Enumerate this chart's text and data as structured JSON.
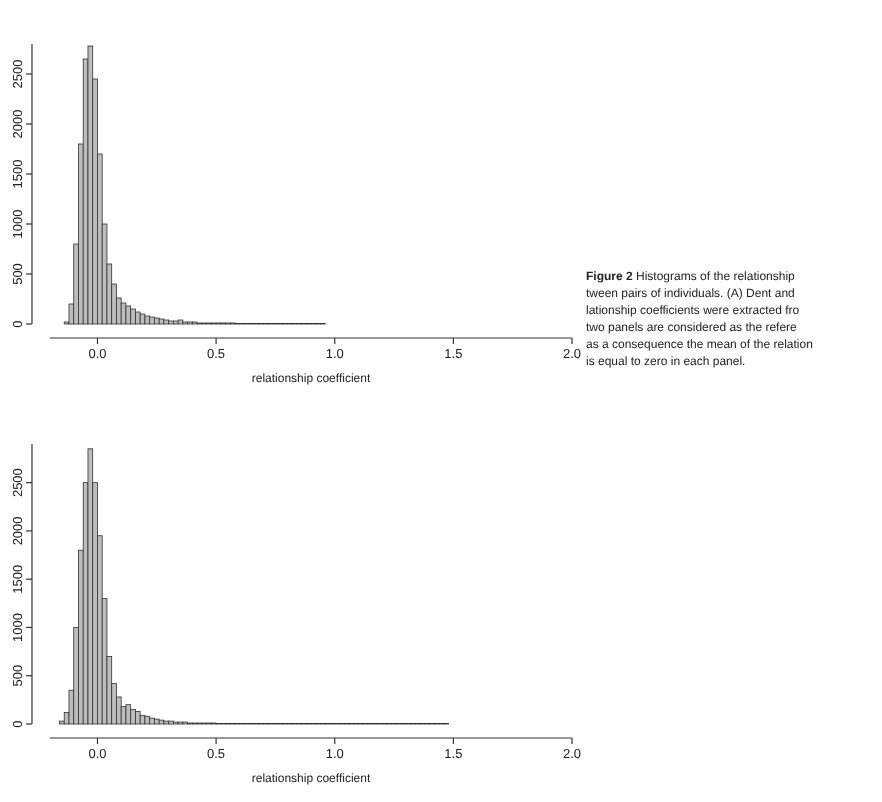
{
  "chart_data": [
    {
      "type": "histogram",
      "xlabel": "relationship coefficient",
      "xlim": [
        -0.2,
        2.0
      ],
      "xticks": [
        {
          "value": 0,
          "label": "0.0"
        },
        {
          "value": 0.5,
          "label": "0.5"
        },
        {
          "value": 1,
          "label": "1.0"
        },
        {
          "value": 1.5,
          "label": "1.5"
        },
        {
          "value": 2,
          "label": "2.0"
        }
      ],
      "ylim": [
        0,
        2800
      ],
      "yticks": [
        0,
        500,
        1000,
        1500,
        2000,
        2500
      ],
      "color": "#bdbdbd",
      "bins": [
        -0.14,
        -0.12,
        -0.1,
        -0.08,
        -0.06,
        -0.04,
        -0.02,
        0,
        0.02,
        0.04,
        0.06,
        0.08,
        0.1,
        0.12,
        0.14,
        0.16,
        0.18,
        0.2,
        0.22,
        0.24,
        0.26,
        0.28,
        0.3,
        0.32,
        0.34,
        0.36,
        0.38,
        0.4,
        0.42,
        0.44,
        0.46,
        0.48,
        0.5,
        0.52,
        0.54,
        0.56,
        0.58,
        0.6,
        0.62,
        0.64,
        0.66,
        0.68,
        0.7,
        0.72,
        0.74,
        0.76,
        0.78,
        0.8,
        0.82,
        0.84,
        0.86,
        0.88,
        0.9,
        0.92,
        0.94,
        0.96
      ],
      "values": [
        20,
        200,
        800,
        1800,
        2650,
        2780,
        2450,
        1700,
        1000,
        600,
        400,
        260,
        210,
        180,
        150,
        120,
        100,
        80,
        70,
        60,
        50,
        40,
        30,
        30,
        40,
        20,
        20,
        20,
        10,
        10,
        10,
        10,
        10,
        10,
        10,
        10,
        5,
        5,
        5,
        5,
        5,
        5,
        5,
        5,
        5,
        5,
        5,
        5,
        5,
        5,
        5,
        5,
        5,
        5,
        5
      ],
      "annotations": [
        "Figure 2 Histograms of the relationship",
        "tween pairs of individuals. (A) Dent and",
        "lationship coefficients were extracted fro",
        "two panels are considered as the refere",
        "as a consequence the mean of the relation",
        "is equal to zero in each panel."
      ]
    },
    {
      "type": "histogram",
      "xlabel": "relationship coefficient",
      "xlim": [
        -0.2,
        2.0
      ],
      "xticks": [
        {
          "value": 0,
          "label": "0.0"
        },
        {
          "value": 0.5,
          "label": "0.5"
        },
        {
          "value": 1,
          "label": "1.0"
        },
        {
          "value": 1.5,
          "label": "1.5"
        },
        {
          "value": 2,
          "label": "2.0"
        }
      ],
      "ylim": [
        0,
        2900
      ],
      "yticks": [
        0,
        500,
        1000,
        1500,
        2000,
        2500
      ],
      "color": "#bdbdbd",
      "bins": [
        -0.16,
        -0.14,
        -0.12,
        -0.1,
        -0.08,
        -0.06,
        -0.04,
        -0.02,
        0,
        0.02,
        0.04,
        0.06,
        0.08,
        0.1,
        0.12,
        0.14,
        0.16,
        0.18,
        0.2,
        0.22,
        0.24,
        0.26,
        0.28,
        0.3,
        0.32,
        0.34,
        0.36,
        0.38,
        0.4,
        0.42,
        0.44,
        0.46,
        0.48,
        0.5,
        0.52,
        0.54,
        0.56,
        0.58,
        0.6,
        0.62,
        0.64,
        0.66,
        0.68,
        0.7,
        0.72,
        0.74,
        0.76,
        0.78,
        0.8,
        0.82,
        0.84,
        0.86,
        0.88,
        0.9,
        0.92,
        0.94,
        0.96,
        0.98,
        1,
        1.02,
        1.04,
        1.06,
        1.08,
        1.1,
        1.12,
        1.14,
        1.16,
        1.18,
        1.2,
        1.22,
        1.24,
        1.26,
        1.28,
        1.3,
        1.32,
        1.34,
        1.36,
        1.38,
        1.4,
        1.42,
        1.44,
        1.46,
        1.48
      ],
      "values": [
        30,
        120,
        350,
        1000,
        1800,
        2500,
        2850,
        2500,
        1950,
        1300,
        700,
        420,
        280,
        180,
        200,
        150,
        130,
        90,
        80,
        60,
        50,
        40,
        30,
        30,
        20,
        20,
        20,
        10,
        10,
        10,
        10,
        10,
        10,
        5,
        5,
        5,
        5,
        5,
        5,
        5,
        5,
        5,
        5,
        5,
        5,
        5,
        5,
        5,
        5,
        5,
        5,
        5,
        5,
        5,
        5,
        5,
        5,
        5,
        5,
        5,
        5,
        5,
        5,
        5,
        5,
        5,
        5,
        5,
        5,
        5,
        5,
        5,
        5,
        5,
        5,
        5,
        5,
        5,
        5,
        5,
        5,
        5
      ]
    }
  ]
}
